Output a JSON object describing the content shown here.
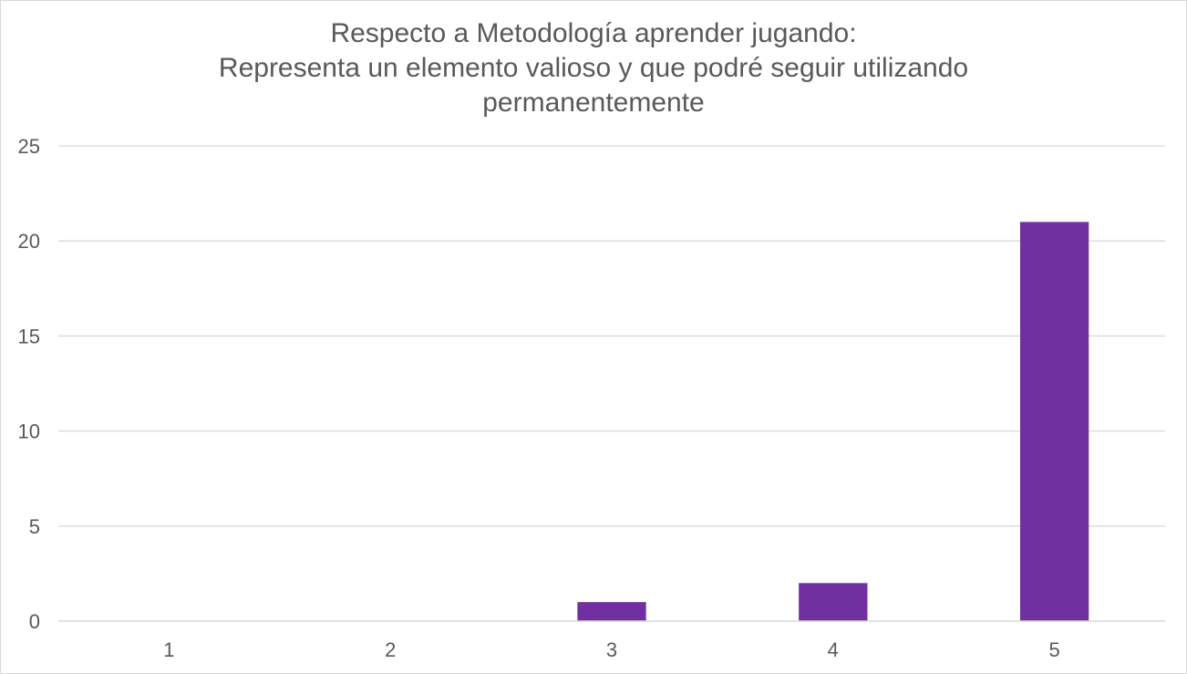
{
  "chart_data": {
    "type": "bar",
    "title_lines": [
      "Respecto a Metodología  aprender jugando:",
      "Representa un elemento valioso y que podré seguir utilizando",
      "permanentemente"
    ],
    "categories": [
      "1",
      "2",
      "3",
      "4",
      "5"
    ],
    "values": [
      0,
      0,
      1,
      2,
      21
    ],
    "ylim": [
      0,
      25
    ],
    "yticks": [
      0,
      5,
      10,
      15,
      20,
      25
    ],
    "xlabel": "",
    "ylabel": "",
    "grid": true,
    "legend": "none",
    "bar_color": "#7030a0",
    "grid_color": "#d9d9d9",
    "text_color": "#595959"
  }
}
